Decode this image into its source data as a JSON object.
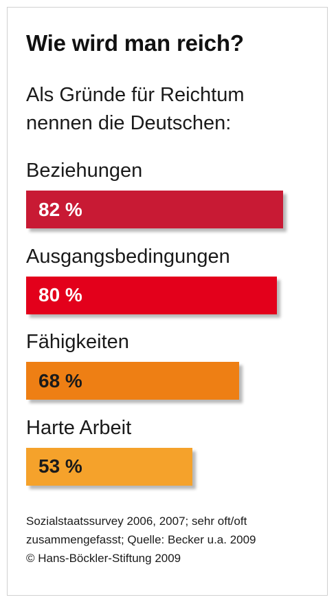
{
  "chart_data": {
    "type": "bar",
    "orientation": "horizontal",
    "title": "Wie wird man reich?",
    "subtitle_lines": [
      "Als Gründe für Reichtum",
      "nennen die Deutschen:"
    ],
    "categories": [
      "Beziehungen",
      "Ausgangsbedingungen",
      "Fähigkeiten",
      "Harte Arbeit"
    ],
    "values": [
      82,
      80,
      68,
      53
    ],
    "value_labels": [
      "82 %",
      "80 %",
      "68 %",
      "53 %"
    ],
    "bar_colors": [
      "#c81a34",
      "#e3001b",
      "#ee7f14",
      "#f5a22b"
    ],
    "label_colors": [
      "#ffffff",
      "#ffffff",
      "#1a1a1a",
      "#1a1a1a"
    ],
    "xlim": [
      0,
      82
    ],
    "grid": false,
    "legend": "none"
  },
  "source_lines": [
    "Sozialstaatssurvey 2006, 2007; sehr oft/oft",
    "zusammengefasst; Quelle: Becker u.a. 2009",
    "© Hans-Böckler-Stiftung 2009"
  ]
}
